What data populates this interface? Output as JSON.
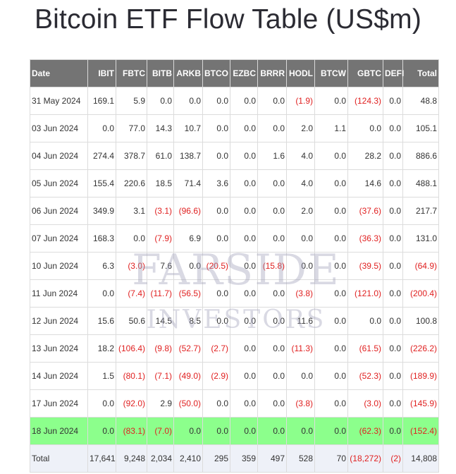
{
  "title": "Bitcoin ETF Flow Table (US$m)",
  "watermark": {
    "line1": "FARSIDE",
    "line2": "INVESTORS"
  },
  "columns": [
    "Date",
    "IBIT",
    "FBTC",
    "BITB",
    "ARKB",
    "BTCO",
    "EZBC",
    "BRRR",
    "HODL",
    "BTCW",
    "GBTC",
    "DEFI",
    "Total"
  ],
  "rows": [
    {
      "date": "31 May 2024",
      "cells": [
        "169.1",
        "5.9",
        "0.0",
        "0.0",
        "0.0",
        "0.0",
        "0.0",
        "(1.9)",
        "0.0",
        "(124.3)",
        "0.0",
        "48.8"
      ]
    },
    {
      "date": "03 Jun 2024",
      "cells": [
        "0.0",
        "77.0",
        "14.3",
        "10.7",
        "0.0",
        "0.0",
        "0.0",
        "2.0",
        "1.1",
        "0.0",
        "0.0",
        "105.1"
      ]
    },
    {
      "date": "04 Jun 2024",
      "cells": [
        "274.4",
        "378.7",
        "61.0",
        "138.7",
        "0.0",
        "0.0",
        "1.6",
        "4.0",
        "0.0",
        "28.2",
        "0.0",
        "886.6"
      ]
    },
    {
      "date": "05 Jun 2024",
      "cells": [
        "155.4",
        "220.6",
        "18.5",
        "71.4",
        "3.6",
        "0.0",
        "0.0",
        "4.0",
        "0.0",
        "14.6",
        "0.0",
        "488.1"
      ]
    },
    {
      "date": "06 Jun 2024",
      "cells": [
        "349.9",
        "3.1",
        "(3.1)",
        "(96.6)",
        "0.0",
        "0.0",
        "0.0",
        "2.0",
        "0.0",
        "(37.6)",
        "0.0",
        "217.7"
      ]
    },
    {
      "date": "07 Jun 2024",
      "cells": [
        "168.3",
        "0.0",
        "(7.9)",
        "6.9",
        "0.0",
        "0.0",
        "0.0",
        "0.0",
        "0.0",
        "(36.3)",
        "0.0",
        "131.0"
      ]
    },
    {
      "date": "10 Jun 2024",
      "cells": [
        "6.3",
        "(3.0)",
        "7.6",
        "0.0",
        "(20.5)",
        "0.0",
        "(15.8)",
        "0.0",
        "0.0",
        "(39.5)",
        "0.0",
        "(64.9)"
      ]
    },
    {
      "date": "11 Jun 2024",
      "cells": [
        "0.0",
        "(7.4)",
        "(11.7)",
        "(56.5)",
        "0.0",
        "0.0",
        "0.0",
        "(3.8)",
        "0.0",
        "(121.0)",
        "0.0",
        "(200.4)"
      ]
    },
    {
      "date": "12 Jun 2024",
      "cells": [
        "15.6",
        "50.6",
        "14.5",
        "8.5",
        "0.0",
        "0.0",
        "0.0",
        "11.6",
        "0.0",
        "0.0",
        "0.0",
        "100.8"
      ]
    },
    {
      "date": "13 Jun 2024",
      "cells": [
        "18.2",
        "(106.4)",
        "(9.8)",
        "(52.7)",
        "(2.7)",
        "0.0",
        "0.0",
        "(11.3)",
        "0.0",
        "(61.5)",
        "0.0",
        "(226.2)"
      ]
    },
    {
      "date": "14 Jun 2024",
      "cells": [
        "1.5",
        "(80.1)",
        "(7.1)",
        "(49.0)",
        "(2.9)",
        "0.0",
        "0.0",
        "0.0",
        "0.0",
        "(52.3)",
        "0.0",
        "(189.9)"
      ]
    },
    {
      "date": "17 Jun 2024",
      "cells": [
        "0.0",
        "(92.0)",
        "2.9",
        "(50.0)",
        "0.0",
        "0.0",
        "0.0",
        "(3.8)",
        "0.0",
        "(3.0)",
        "0.0",
        "(145.9)"
      ]
    },
    {
      "date": "18 Jun 2024",
      "cells": [
        "0.0",
        "(83.1)",
        "(7.0)",
        "0.0",
        "0.0",
        "0.0",
        "0.0",
        "0.0",
        "0.0",
        "(62.3)",
        "0.0",
        "(152.4)"
      ],
      "highlight": true
    }
  ],
  "total": {
    "label": "Total",
    "cells": [
      "17,641",
      "9,248",
      "2,034",
      "2,410",
      "295",
      "359",
      "497",
      "528",
      "70",
      "(18,272)",
      "(2)",
      "14,808"
    ]
  },
  "colors": {
    "header_bg": "#747474",
    "negative": "#e02020",
    "highlight_row": "#8cff8c",
    "total_row": "#eef1f8"
  }
}
